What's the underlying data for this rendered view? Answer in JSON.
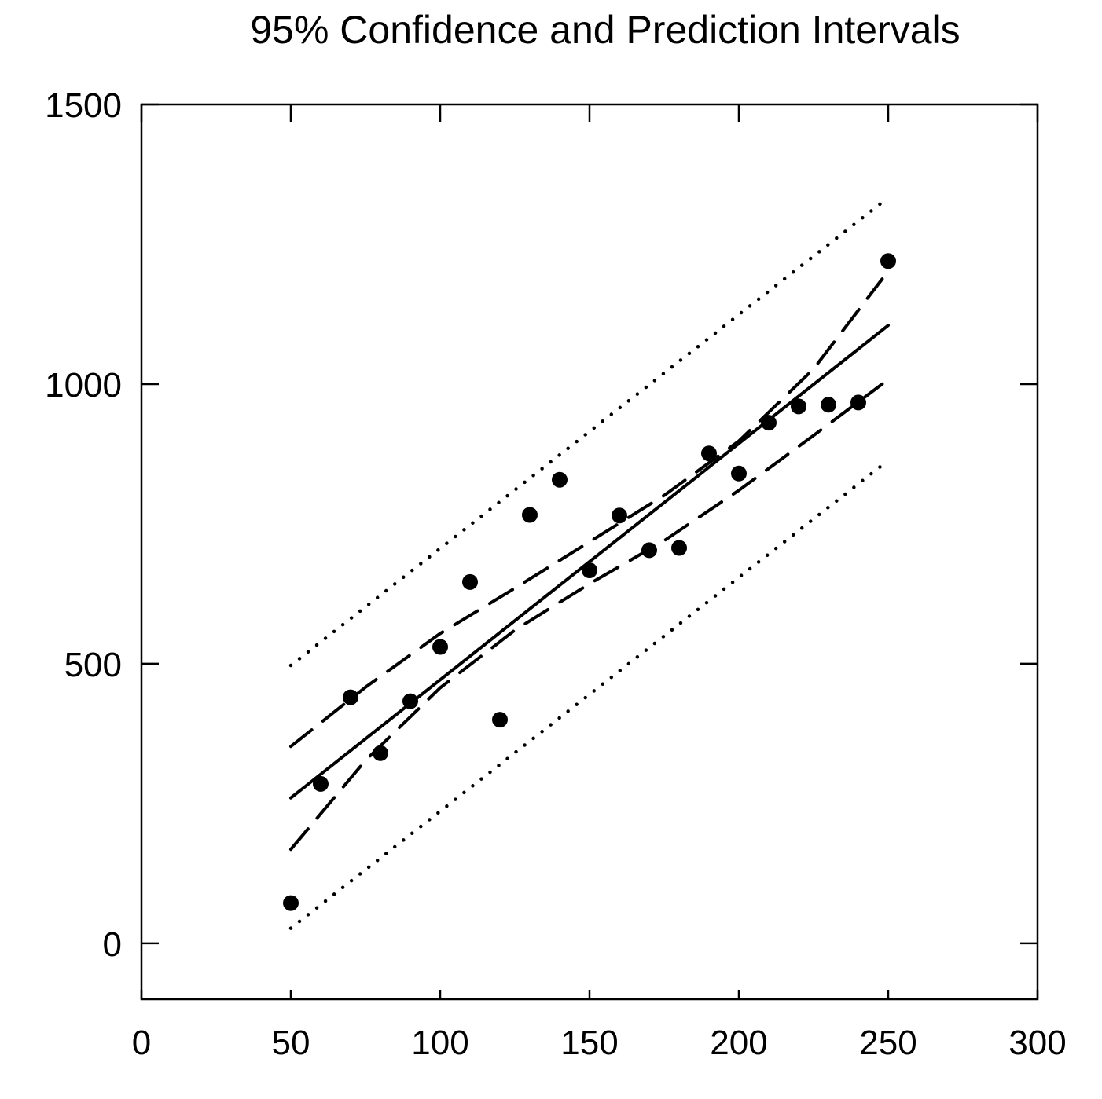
{
  "chart_data": {
    "type": "scatter",
    "title": "95% Confidence and Prediction Intervals",
    "xlabel": "",
    "ylabel": "",
    "xlim": [
      0,
      300
    ],
    "ylim": [
      -100,
      1500
    ],
    "x_ticks": [
      0,
      50,
      100,
      150,
      200,
      250,
      300
    ],
    "y_ticks": [
      0,
      500,
      1000,
      1500
    ],
    "grid": false,
    "legend": false,
    "colors": {
      "ink": "#000000",
      "background": "#ffffff"
    },
    "points": {
      "x": [
        50,
        60,
        70,
        80,
        90,
        100,
        110,
        120,
        130,
        140,
        150,
        160,
        170,
        180,
        190,
        200,
        210,
        220,
        230,
        240,
        250
      ],
      "y": [
        72,
        285,
        440,
        340,
        433,
        530,
        646,
        400,
        766,
        829,
        667,
        765,
        703,
        707,
        876,
        840,
        931,
        960,
        963,
        967,
        1220
      ]
    },
    "fit_line": {
      "x": [
        50,
        250
      ],
      "y": [
        260,
        1105
      ]
    },
    "confidence_band": {
      "x": [
        50,
        75,
        100,
        125,
        150,
        175,
        200,
        225,
        248
      ],
      "upper": [
        352,
        458,
        554,
        635,
        718,
        801,
        898,
        1027,
        1188
      ],
      "lower": [
        168,
        327,
        457,
        560,
        643,
        720,
        810,
        908,
        1000
      ]
    },
    "prediction_band": {
      "x": [
        50,
        248
      ],
      "upper": [
        497,
        1325
      ],
      "lower": [
        27,
        855
      ]
    }
  }
}
